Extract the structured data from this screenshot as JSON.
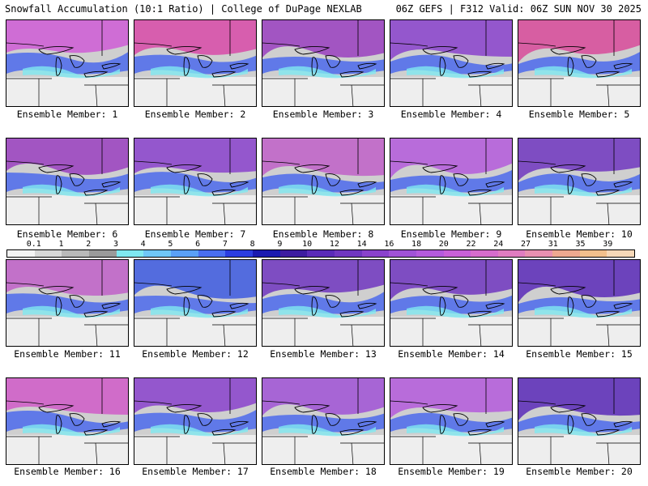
{
  "header": {
    "title": "Snowfall Accumulation (10:1 Ratio) | College of DuPage NEXLAB",
    "run_info": "06Z GEFS | F312 Valid: 06Z SUN NOV 30 2025"
  },
  "colorbar": {
    "labels": [
      "0.1",
      "1",
      "2",
      "3",
      "4",
      "5",
      "6",
      "7",
      "8",
      "9",
      "10",
      "12",
      "14",
      "16",
      "18",
      "20",
      "22",
      "24",
      "27",
      "31",
      "35",
      "39"
    ],
    "colors": [
      "#f4f4f4",
      "#d8d8d8",
      "#b9b9b9",
      "#9a9a9a",
      "#7fe8f0",
      "#6fc7f7",
      "#5aa0f7",
      "#4a6ef0",
      "#2b3de0",
      "#1a1ab0",
      "#3d1ca0",
      "#5a2ab8",
      "#7036c0",
      "#8a42cc",
      "#a052d6",
      "#b45adc",
      "#c860d8",
      "#d66ccc",
      "#e07cc0",
      "#e890b0",
      "#eda890",
      "#f2c08c",
      "#f6d8b8"
    ]
  },
  "members": [
    {
      "label": "Ensemble Member: 1",
      "tone": "#cf5cd6"
    },
    {
      "label": "Ensemble Member: 2",
      "tone": "#d84aa8"
    },
    {
      "label": "Ensemble Member: 3",
      "tone": "#9a3fc0"
    },
    {
      "label": "Ensemble Member: 4",
      "tone": "#8a42cc"
    },
    {
      "label": "Ensemble Member: 5",
      "tone": "#d84a9a"
    },
    {
      "label": "Ensemble Member: 6",
      "tone": "#9a3fc0"
    },
    {
      "label": "Ensemble Member: 7",
      "tone": "#8a42cc"
    },
    {
      "label": "Ensemble Member: 8",
      "tone": "#c060c8"
    },
    {
      "label": "Ensemble Member: 9",
      "tone": "#b45adc"
    },
    {
      "label": "Ensemble Member: 10",
      "tone": "#7036c0"
    },
    {
      "label": "Ensemble Member: 11",
      "tone": "#c060c8"
    },
    {
      "label": "Ensemble Member: 12",
      "tone": "#3d5ae0"
    },
    {
      "label": "Ensemble Member: 13",
      "tone": "#7036c0"
    },
    {
      "label": "Ensemble Member: 14",
      "tone": "#7036c0"
    },
    {
      "label": "Ensemble Member: 15",
      "tone": "#5a2ab8"
    },
    {
      "label": "Ensemble Member: 16",
      "tone": "#d05ac8"
    },
    {
      "label": "Ensemble Member: 17",
      "tone": "#8a42cc"
    },
    {
      "label": "Ensemble Member: 18",
      "tone": "#a052d6"
    },
    {
      "label": "Ensemble Member: 19",
      "tone": "#b45adc"
    },
    {
      "label": "Ensemble Member: 20",
      "tone": "#5a2ab8"
    }
  ]
}
